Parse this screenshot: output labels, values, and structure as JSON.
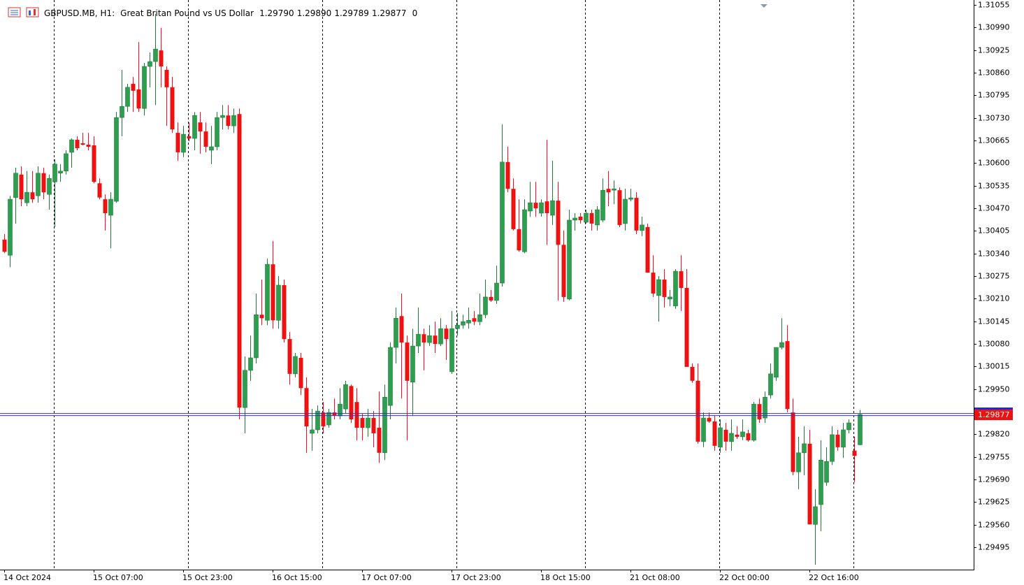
{
  "chart_data": {
    "type": "candlestick",
    "title": "GBPUSD.MB, H1:",
    "subtitle": "Great Britan Pound vs US Dollar",
    "spread": 0,
    "up_color": "#2e9e4f",
    "down_color": "#ee1111",
    "ylim": [
      1.29431,
      1.31069
    ],
    "yticks": [
      1.31055,
      {
        "value": 1.3099,
        "label": "1.30990"
      },
      1.30925,
      {
        "value": 1.3086,
        "label": "1.30860"
      },
      1.30795,
      {
        "value": 1.3073,
        "label": "1.30730"
      },
      1.30665,
      {
        "value": 1.306,
        "label": "1.30600"
      },
      1.30535,
      {
        "value": 1.3047,
        "label": "1.30470"
      },
      1.30405,
      {
        "value": 1.3034,
        "label": "1.30340"
      },
      1.30275,
      {
        "value": 1.3021,
        "label": "1.30210"
      },
      1.30145,
      {
        "value": 1.3008,
        "label": "1.30080"
      },
      1.30015,
      {
        "value": 1.2995,
        "label": "1.29950"
      },
      1.29885,
      {
        "value": 1.2982,
        "label": "1.29820"
      },
      1.29755,
      {
        "value": 1.2969,
        "label": "1.29690"
      },
      1.29625,
      {
        "value": 1.2956,
        "label": "1.29560"
      },
      1.29495
    ],
    "categories": [
      "14 Oct 2024",
      null,
      null,
      null,
      null,
      null,
      null,
      null,
      null,
      null,
      null,
      null,
      null,
      null,
      null,
      null,
      "15 Oct 07:00",
      null,
      null,
      null,
      null,
      null,
      null,
      null,
      null,
      null,
      null,
      null,
      null,
      null,
      null,
      null,
      "15 Oct 23:00",
      null,
      null,
      null,
      null,
      null,
      null,
      null,
      null,
      null,
      null,
      null,
      null,
      null,
      null,
      null,
      "16 Oct 15:00",
      null,
      null,
      null,
      null,
      null,
      null,
      null,
      null,
      null,
      null,
      null,
      null,
      null,
      null,
      null,
      "17 Oct 07:00",
      null,
      null,
      null,
      null,
      null,
      null,
      null,
      null,
      null,
      null,
      null,
      null,
      null,
      null,
      null,
      "17 Oct 23:00",
      null,
      null,
      null,
      null,
      null,
      null,
      null,
      null,
      null,
      null,
      null,
      null,
      null,
      null,
      null,
      "18 Oct 15:00",
      null,
      null,
      null,
      null,
      null,
      null,
      null,
      null,
      null,
      null,
      null,
      null,
      null,
      null,
      null,
      "21 Oct 08:00",
      null,
      null,
      null,
      null,
      null,
      null,
      null,
      null,
      null,
      null,
      null,
      null,
      null,
      null,
      null,
      "22 Oct 00:00",
      null,
      null,
      null,
      null,
      null,
      null,
      null,
      null,
      null,
      null,
      null,
      null,
      null,
      null,
      null,
      "22 Oct 16:00",
      null,
      null,
      null,
      null,
      null,
      null,
      null,
      null,
      null
    ],
    "open": [
      1.3038,
      1.30335,
      1.30501,
      1.30567,
      1.30486,
      1.30516,
      1.30506,
      1.30571,
      1.3051,
      1.30546,
      1.30571,
      1.30577,
      1.30631,
      1.30667,
      1.30657,
      1.30653,
      1.30651,
      1.30542,
      1.30496,
      1.3045,
      1.3049,
      1.30731,
      1.30763,
      1.30828,
      1.30812,
      1.30757,
      1.30878,
      1.30892,
      1.30924,
      1.30868,
      1.30818,
      1.30687,
      1.30631,
      1.30677,
      1.30671,
      1.30717,
      1.30691,
      1.30637,
      1.30647,
      1.30731,
      1.30737,
      1.30707,
      1.30741,
      1.29897,
      1.30004,
      1.3004,
      1.30164,
      1.30148,
      1.30309,
      1.30148,
      1.30249,
      1.30094,
      1.29994,
      1.3004,
      1.29953,
      1.29823,
      1.29833,
      1.29883,
      1.29847,
      1.29883,
      1.29873,
      1.29893,
      1.29959,
      1.29913,
      1.29867,
      1.29839,
      1.29867,
      1.29839,
      1.29767,
      1.29903,
      1.3007,
      1.3016,
      1.30084,
      1.2997,
      1.30074,
      1.30108,
      1.30084,
      1.30104,
      1.3008,
      1.30124,
      1.3,
      1.30124,
      1.30134,
      1.3014,
      1.30154,
      1.30144,
      1.30164,
      1.30215,
      1.30205,
      1.30255,
      1.30603,
      1.30526,
      1.3041,
      1.30345,
      1.30462,
      1.30486,
      1.30456,
      1.3049,
      1.3045,
      1.30492,
      1.30365,
      1.30209,
      1.30436,
      1.30446,
      1.3043,
      1.30456,
      1.30422,
      1.30436,
      1.30526,
      1.30522,
      1.30522,
      1.30426,
      1.30496,
      1.305,
      1.30406,
      1.30416,
      1.30285,
      1.30219,
      1.30265,
      1.30209,
      1.30189,
      1.30289,
      1.30241,
      1.30014,
      1.29974,
      1.29799,
      1.29867,
      1.29857,
      1.29783,
      1.29833,
      1.29799,
      1.29819,
      1.29813,
      1.29823,
      1.29803,
      1.29907,
      1.29867,
      1.29933,
      1.29984,
      1.3007,
      1.30088,
      1.29883,
      1.29712,
      1.29767,
      1.29793,
      1.29561,
      1.29618,
      1.29682,
      1.29742,
      1.29819,
      1.29783,
      1.29833,
      1.29773,
      1.2979
    ],
    "high": [
      1.30396,
      1.30506,
      1.30587,
      1.30591,
      1.30577,
      1.30577,
      1.30591,
      1.30587,
      1.30567,
      1.30611,
      1.30597,
      1.30637,
      1.30671,
      1.30677,
      1.30687,
      1.30687,
      1.30677,
      1.30556,
      1.3051,
      1.30516,
      1.30747,
      1.30868,
      1.30828,
      1.30848,
      1.30948,
      1.30888,
      1.30918,
      1.31029,
      1.30989,
      1.30878,
      1.30848,
      1.30717,
      1.30707,
      1.30717,
      1.30747,
      1.30747,
      1.30717,
      1.30707,
      1.30747,
      1.30767,
      1.30767,
      1.30757,
      1.30757,
      1.30044,
      1.30104,
      1.30225,
      1.30265,
      1.30325,
      1.30376,
      1.30275,
      1.30265,
      1.30114,
      1.30054,
      1.30054,
      1.29984,
      1.29893,
      1.29903,
      1.29913,
      1.29893,
      1.29923,
      1.29953,
      1.29974,
      1.29963,
      1.29953,
      1.29879,
      1.29893,
      1.29887,
      1.29943,
      1.29963,
      1.30084,
      1.30185,
      1.30225,
      1.30104,
      1.30124,
      1.30185,
      1.30124,
      1.30134,
      1.30144,
      1.30154,
      1.30134,
      1.30175,
      1.30169,
      1.30164,
      1.30185,
      1.30175,
      1.30225,
      1.30265,
      1.30235,
      1.30305,
      1.30711,
      1.30647,
      1.30556,
      1.30496,
      1.30496,
      1.30546,
      1.30546,
      1.30496,
      1.30667,
      1.30607,
      1.30546,
      1.30406,
      1.30466,
      1.30456,
      1.30456,
      1.30466,
      1.30466,
      1.30476,
      1.30556,
      1.30577,
      1.3055,
      1.3053,
      1.30526,
      1.30526,
      1.30516,
      1.30446,
      1.30426,
      1.30335,
      1.30275,
      1.30295,
      1.30235,
      1.30295,
      1.30335,
      1.30295,
      1.30024,
      1.30024,
      1.29883,
      1.29883,
      1.29873,
      1.29863,
      1.29853,
      1.29863,
      1.29843,
      1.29863,
      1.29833,
      1.29913,
      1.29923,
      1.29943,
      1.30024,
      1.30064,
      1.30154,
      1.30134,
      1.29923,
      1.29813,
      1.29843,
      1.29833,
      1.29662,
      1.29803,
      1.29783,
      1.29843,
      1.29833,
      1.29853,
      1.29863,
      1.29813,
      1.2989
    ],
    "low": [
      1.30341,
      1.30301,
      1.30426,
      1.30476,
      1.30476,
      1.30486,
      1.30486,
      1.30496,
      1.30466,
      1.30416,
      1.30546,
      1.30567,
      1.30587,
      1.30637,
      1.30651,
      1.30637,
      1.30542,
      1.30496,
      1.30406,
      1.30355,
      1.30486,
      1.30677,
      1.30747,
      1.30747,
      1.30747,
      1.30737,
      1.30818,
      1.30767,
      1.30818,
      1.30707,
      1.30687,
      1.30607,
      1.30617,
      1.30663,
      1.30637,
      1.30627,
      1.30631,
      1.30597,
      1.30637,
      1.30697,
      1.30697,
      1.30687,
      1.29863,
      1.29823,
      1.29974,
      1.30024,
      1.30134,
      1.30134,
      1.30124,
      1.30124,
      1.30084,
      1.29963,
      1.29984,
      1.29933,
      1.29767,
      1.29773,
      1.29823,
      1.29823,
      1.29839,
      1.29863,
      1.29863,
      1.29879,
      1.29853,
      1.29803,
      1.29803,
      1.29813,
      1.29783,
      1.29738,
      1.29746,
      1.29863,
      1.30024,
      1.29923,
      1.29803,
      1.29873,
      1.30054,
      1.30004,
      1.30074,
      1.30054,
      1.30074,
      1.30034,
      1.29994,
      1.30104,
      1.30124,
      1.30124,
      1.30134,
      1.30134,
      1.30154,
      1.30201,
      1.30195,
      1.30245,
      1.30516,
      1.30406,
      1.30345,
      1.30341,
      1.30446,
      1.30446,
      1.30446,
      1.30365,
      1.30422,
      1.30205,
      1.30201,
      1.30205,
      1.30406,
      1.30426,
      1.30426,
      1.30406,
      1.30406,
      1.3043,
      1.30476,
      1.30482,
      1.30416,
      1.30406,
      1.3049,
      1.30396,
      1.3039,
      1.30285,
      1.30215,
      1.30144,
      1.30185,
      1.30189,
      1.30181,
      1.30175,
      1.30014,
      1.29968,
      1.29793,
      1.29783,
      1.29853,
      1.29773,
      1.29767,
      1.29773,
      1.29773,
      1.29807,
      1.29803,
      1.29799,
      1.29799,
      1.29853,
      1.29853,
      1.29923,
      1.29974,
      1.30064,
      1.29883,
      1.29702,
      1.29662,
      1.29702,
      1.29561,
      1.29445,
      1.29541,
      1.29672,
      1.29732,
      1.29773,
      1.29752,
      1.29823,
      1.29682,
      1.29789
    ],
    "close": [
      1.30345,
      1.30496,
      1.30571,
      1.30496,
      1.30516,
      1.30496,
      1.30571,
      1.30516,
      1.30556,
      1.30597,
      1.30577,
      1.30627,
      1.30667,
      1.30643,
      1.30653,
      1.30647,
      1.30546,
      1.30501,
      1.30456,
      1.30496,
      1.30731,
      1.30763,
      1.30818,
      1.30808,
      1.30757,
      1.30878,
      1.30892,
      1.30928,
      1.30878,
      1.30818,
      1.30697,
      1.30631,
      1.30683,
      1.30671,
      1.30737,
      1.30691,
      1.30647,
      1.30647,
      1.30731,
      1.30737,
      1.30707,
      1.30737,
      1.29897,
      1.30004,
      1.3004,
      1.30164,
      1.30154,
      1.30309,
      1.30148,
      1.30249,
      1.30094,
      1.29994,
      1.30044,
      1.29953,
      1.29843,
      1.29833,
      1.29887,
      1.29843,
      1.29883,
      1.29873,
      1.29907,
      1.29963,
      1.29863,
      1.29839,
      1.29839,
      1.29867,
      1.29823,
      1.29767,
      1.29927,
      1.3007,
      1.30154,
      1.30084,
      1.29974,
      1.30074,
      1.30108,
      1.30084,
      1.30104,
      1.3008,
      1.30124,
      1.30094,
      1.30124,
      1.30134,
      1.30144,
      1.30148,
      1.30144,
      1.30164,
      1.30215,
      1.30205,
      1.30255,
      1.30603,
      1.30526,
      1.3041,
      1.30349,
      1.30466,
      1.30486,
      1.3047,
      1.30486,
      1.30456,
      1.30492,
      1.30365,
      1.30215,
      1.30436,
      1.30442,
      1.30436,
      1.30456,
      1.30426,
      1.30466,
      1.30522,
      1.30516,
      1.30526,
      1.30422,
      1.30496,
      1.305,
      1.30406,
      1.30422,
      1.30285,
      1.30225,
      1.30265,
      1.30215,
      1.30215,
      1.30289,
      1.30241,
      1.30014,
      1.29974,
      1.29799,
      1.29867,
      1.29857,
      1.29787,
      1.29839,
      1.29799,
      1.29823,
      1.29813,
      1.29827,
      1.29803,
      1.29907,
      1.29863,
      1.29927,
      1.29994,
      1.3007,
      1.30084,
      1.29893,
      1.29712,
      1.29767,
      1.29793,
      1.29561,
      1.29612,
      1.29746,
      1.29742,
      1.29819,
      1.29783,
      1.29833,
      1.29853,
      1.29758,
      1.29877
    ]
  }
}
